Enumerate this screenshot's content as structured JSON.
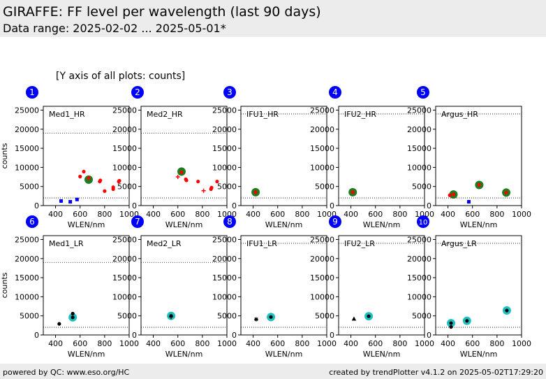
{
  "header": {
    "title": "GIRAFFE: FF level per wavelength (last 90 days)",
    "subtitle": "Data range: 2025-02-02 ... 2025-05-01*"
  },
  "y_axis_note": "[Y axis of all plots: counts]",
  "footer": {
    "left": "powered by QC: www.eso.org/HC",
    "right": "created by trendPlotter v4.1.2 on 2025-05-02T17:29:20"
  },
  "colors": {
    "header_bg": "#ececec",
    "badge": "#0000ff",
    "red": "#ff0000",
    "green": "#1e7d1e",
    "blue": "#0000ff",
    "cyan": "#20c0c0",
    "black": "#000000"
  },
  "chart_data": [
    {
      "type": "scatter",
      "index": "1",
      "label": "Med1_HR",
      "xlabel": "WLEN/nm",
      "ylabel": "counts",
      "xlim": [
        300,
        1000
      ],
      "ylim": [
        0,
        26000
      ],
      "xticks": [
        400,
        600,
        800,
        1000
      ],
      "yticks": [
        0,
        5000,
        10000,
        15000,
        20000,
        25000
      ],
      "reference_lines": [
        19000,
        2000
      ],
      "series": [
        {
          "marker": "big-green",
          "points": [
            [
              670,
              6800
            ]
          ]
        },
        {
          "marker": "red-dot",
          "points": [
            [
              600,
              7600
            ],
            [
              630,
              8900
            ],
            [
              670,
              7200
            ],
            [
              760,
              6300
            ],
            [
              765,
              6600
            ],
            [
              800,
              3800
            ],
            [
              870,
              4300
            ],
            [
              870,
              4800
            ],
            [
              915,
              6300
            ],
            [
              920,
              6500
            ]
          ]
        },
        {
          "marker": "blue-square",
          "points": [
            [
              445,
              1200
            ],
            [
              520,
              1000
            ],
            [
              575,
              1600
            ]
          ]
        }
      ]
    },
    {
      "type": "scatter",
      "index": "2",
      "label": "Med2_HR",
      "xlabel": "WLEN/nm",
      "ylabel": "",
      "xlim": [
        300,
        1000
      ],
      "ylim": [
        0,
        26000
      ],
      "xticks": [
        400,
        600,
        800,
        1000
      ],
      "yticks": [
        0,
        5000,
        10000,
        15000,
        20000,
        25000
      ],
      "reference_lines": [
        19000,
        2000
      ],
      "series": [
        {
          "marker": "big-green",
          "points": [
            [
              630,
              8900
            ]
          ]
        },
        {
          "marker": "red-dot",
          "points": [
            [
              630,
              8700
            ],
            [
              665,
              6900
            ],
            [
              670,
              6600
            ],
            [
              765,
              6300
            ],
            [
              870,
              4300
            ],
            [
              875,
              4700
            ],
            [
              920,
              6300
            ]
          ]
        },
        {
          "marker": "red-plus",
          "points": [
            [
              600,
              7500
            ],
            [
              810,
              3900
            ]
          ]
        }
      ]
    },
    {
      "type": "scatter",
      "index": "3",
      "label": "IFU1_HR",
      "xlabel": "WLEN/nm",
      "ylabel": "",
      "xlim": [
        300,
        1000
      ],
      "ylim": [
        0,
        26000
      ],
      "xticks": [
        400,
        600,
        800,
        1000
      ],
      "yticks": [
        0,
        5000,
        10000,
        15000,
        20000,
        25000
      ],
      "reference_lines": [
        24000,
        2000
      ],
      "series": [
        {
          "marker": "big-green",
          "points": [
            [
              420,
              3500
            ]
          ]
        },
        {
          "marker": "red-dot",
          "points": [
            [
              420,
              3500
            ]
          ]
        }
      ]
    },
    {
      "type": "scatter",
      "index": "4",
      "label": "IFU2_HR",
      "xlabel": "WLEN/nm",
      "ylabel": "",
      "xlim": [
        300,
        1000
      ],
      "ylim": [
        0,
        26000
      ],
      "xticks": [
        400,
        600,
        800,
        1000
      ],
      "yticks": [
        0,
        5000,
        10000,
        15000,
        20000,
        25000
      ],
      "reference_lines": [
        24000,
        2000
      ],
      "series": [
        {
          "marker": "big-green",
          "points": [
            [
              415,
              3500
            ]
          ]
        },
        {
          "marker": "red-dot",
          "points": [
            [
              415,
              3500
            ]
          ]
        }
      ]
    },
    {
      "type": "scatter",
      "index": "5",
      "label": "Argus_HR",
      "xlabel": "WLEN/nm",
      "ylabel": "",
      "xlim": [
        300,
        1000
      ],
      "ylim": [
        0,
        26000
      ],
      "xticks": [
        400,
        600,
        800,
        1000
      ],
      "yticks": [
        0,
        5000,
        10000,
        15000,
        20000,
        25000
      ],
      "reference_lines": [
        24000,
        2000
      ],
      "series": [
        {
          "marker": "big-green",
          "points": [
            [
              445,
              2900
            ],
            [
              655,
              5400
            ],
            [
              875,
              3400
            ]
          ]
        },
        {
          "marker": "red-dot",
          "points": [
            [
              415,
              2700
            ],
            [
              445,
              2900
            ],
            [
              655,
              5400
            ],
            [
              875,
              3400
            ]
          ]
        },
        {
          "marker": "blue-square",
          "points": [
            [
              570,
              1000
            ]
          ]
        }
      ]
    },
    {
      "type": "scatter",
      "index": "6",
      "label": "Med1_LR",
      "xlabel": "WLEN/nm",
      "ylabel": "counts",
      "xlim": [
        300,
        1000
      ],
      "ylim": [
        0,
        26000
      ],
      "xticks": [
        400,
        600,
        800,
        1000
      ],
      "yticks": [
        0,
        5000,
        10000,
        15000,
        20000,
        25000
      ],
      "reference_lines": [
        19000,
        2000
      ],
      "series": [
        {
          "marker": "big-cyan",
          "points": [
            [
              540,
              4600
            ]
          ]
        },
        {
          "marker": "black-dot",
          "points": [
            [
              430,
              2900
            ],
            [
              540,
              5600
            ],
            [
              540,
              4600
            ]
          ]
        }
      ]
    },
    {
      "type": "scatter",
      "index": "7",
      "label": "Med2_LR",
      "xlabel": "WLEN/nm",
      "ylabel": "",
      "xlim": [
        300,
        1000
      ],
      "ylim": [
        0,
        26000
      ],
      "xticks": [
        400,
        600,
        800,
        1000
      ],
      "yticks": [
        0,
        5000,
        10000,
        15000,
        20000,
        25000
      ],
      "reference_lines": [
        19000,
        2000
      ],
      "series": [
        {
          "marker": "big-cyan",
          "points": [
            [
              545,
              5000
            ]
          ]
        },
        {
          "marker": "black-dot",
          "points": [
            [
              545,
              5000
            ]
          ]
        },
        {
          "marker": "black-plus",
          "points": [
            [
              545,
              4700
            ]
          ]
        }
      ]
    },
    {
      "type": "scatter",
      "index": "8",
      "label": "IFU1_LR",
      "xlabel": "WLEN/nm",
      "ylabel": "",
      "xlim": [
        300,
        1000
      ],
      "ylim": [
        0,
        26000
      ],
      "xticks": [
        400,
        600,
        800,
        1000
      ],
      "yticks": [
        0,
        5000,
        10000,
        15000,
        20000,
        25000
      ],
      "reference_lines": [
        24000,
        2000
      ],
      "series": [
        {
          "marker": "big-cyan",
          "points": [
            [
              545,
              4700
            ]
          ]
        },
        {
          "marker": "black-dot",
          "points": [
            [
              545,
              4700
            ]
          ]
        },
        {
          "marker": "black-star",
          "points": [
            [
              425,
              4100
            ]
          ]
        }
      ]
    },
    {
      "type": "scatter",
      "index": "9",
      "label": "IFU2_LR",
      "xlabel": "WLEN/nm",
      "ylabel": "",
      "xlim": [
        300,
        1000
      ],
      "ylim": [
        0,
        26000
      ],
      "xticks": [
        400,
        600,
        800,
        1000
      ],
      "yticks": [
        0,
        5000,
        10000,
        15000,
        20000,
        25000
      ],
      "reference_lines": [
        24000,
        2000
      ],
      "series": [
        {
          "marker": "big-cyan",
          "points": [
            [
              545,
              4900
            ]
          ]
        },
        {
          "marker": "black-dot",
          "points": [
            [
              545,
              4900
            ]
          ]
        },
        {
          "marker": "black-triangle",
          "points": [
            [
              425,
              4200
            ]
          ]
        }
      ]
    },
    {
      "type": "scatter",
      "index": "10",
      "label": "Argus_LR",
      "xlabel": "WLEN/nm",
      "ylabel": "",
      "xlim": [
        300,
        1000
      ],
      "ylim": [
        0,
        26000
      ],
      "xticks": [
        400,
        600,
        800,
        1000
      ],
      "yticks": [
        0,
        5000,
        10000,
        15000,
        20000,
        25000
      ],
      "reference_lines": [
        24000,
        2000
      ],
      "series": [
        {
          "marker": "big-cyan",
          "points": [
            [
              425,
              3100
            ],
            [
              555,
              3700
            ],
            [
              880,
              6400
            ]
          ]
        },
        {
          "marker": "black-dot",
          "points": [
            [
              425,
              3100
            ],
            [
              425,
              2100
            ],
            [
              555,
              3700
            ],
            [
              880,
              6400
            ]
          ]
        }
      ]
    }
  ]
}
